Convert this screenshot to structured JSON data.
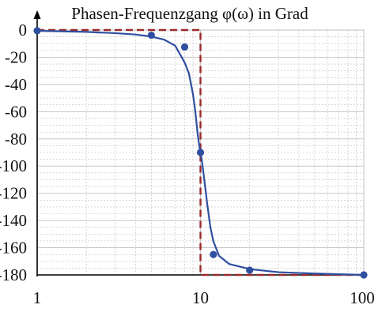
{
  "chart_data": {
    "type": "line",
    "title": "Phasen-Frequenzgang φ(ω)  in Grad",
    "x_scale": "log",
    "xlim": [
      1,
      100
    ],
    "ylim": [
      -180,
      0
    ],
    "x_ticks": [
      "1",
      "10",
      "100"
    ],
    "y_ticks": [
      "0",
      "-20",
      "-40",
      "-60",
      "-80",
      "-100",
      "-120",
      "-140",
      "-160",
      "-180"
    ],
    "grid": true,
    "colors": {
      "curve": "#2f4fa0",
      "reference": "#9b2a2a",
      "grid": "#bfbfbf"
    },
    "series": [
      {
        "type": "curve",
        "x": [
          1,
          2,
          3,
          4,
          5,
          6,
          7,
          8,
          8.5,
          9,
          9.3,
          9.6,
          9.8,
          10,
          10.2,
          10.4,
          10.7,
          11,
          11.5,
          12,
          13,
          15,
          20,
          30,
          50,
          100
        ],
        "y": [
          -0.6,
          -1.4,
          -2.3,
          -3.3,
          -4.8,
          -7.1,
          -11.5,
          -23.9,
          -32,
          -47.4,
          -60,
          -76,
          -84,
          -90,
          -96,
          -104,
          -116,
          -128,
          -145,
          -155.4,
          -166,
          -172,
          -175.7,
          -178,
          -179,
          -180
        ]
      },
      {
        "type": "points",
        "x": [
          1,
          5,
          8,
          10,
          12,
          20,
          100
        ],
        "y": [
          -0.5,
          -3.8,
          -12.5,
          -90,
          -165,
          -176.5,
          -180
        ]
      },
      {
        "type": "reference",
        "x": [
          1,
          10,
          10,
          100
        ],
        "y": [
          0,
          0,
          -180,
          -180
        ]
      }
    ]
  }
}
